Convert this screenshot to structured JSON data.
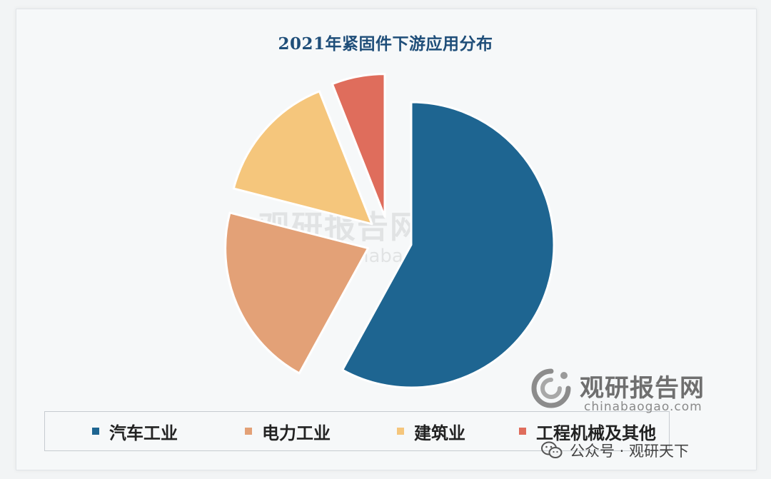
{
  "chart_data": {
    "type": "pie",
    "title": "2021年紧固件下游应用分布",
    "categories": [
      "汽车工业",
      "电力工业",
      "建筑业",
      "工程机械及其他"
    ],
    "values": [
      58,
      21,
      15,
      6
    ],
    "colors": [
      "#1e6591",
      "#e3a177",
      "#f5c67c",
      "#df6d5c"
    ]
  },
  "watermark": {
    "name": "观研报告网",
    "url": "chinabaogao.com"
  },
  "footer": {
    "wechat_text": "公众号 · 观研天下"
  }
}
